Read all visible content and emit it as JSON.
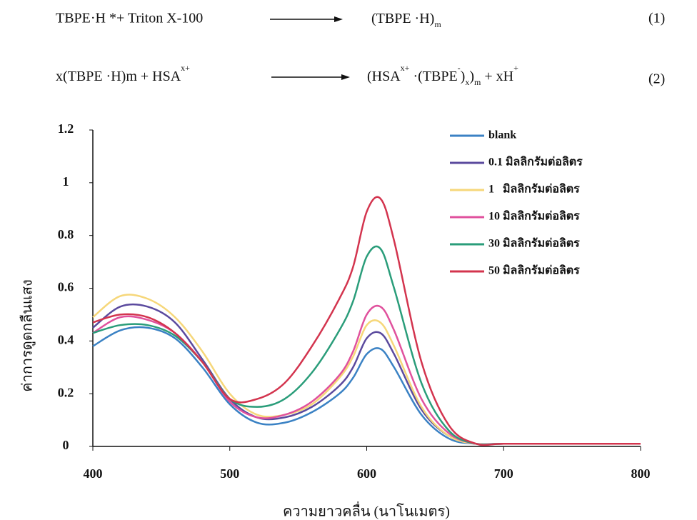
{
  "equations": [
    {
      "parts": [
        "TBPE·H *+ Triton X-100",
        "(TBPE ·H)",
        "m"
      ],
      "number": "(1)"
    },
    {
      "parts": [
        "x(TBPE ·H)m + HSA",
        "x+",
        "(HSA",
        "x+",
        " ·(TBPE",
        "-",
        ")",
        "x",
        ")",
        "m",
        " + xH",
        "+"
      ],
      "number": "(2)"
    }
  ],
  "chart_data": {
    "type": "line",
    "x_label": "ความยาวคลื่น (นาโนเมตร)",
    "y_label": "ค่าการดูดกลืนแสง",
    "x": [
      400,
      420,
      440,
      460,
      480,
      500,
      520,
      540,
      560,
      580,
      590,
      600,
      610,
      620,
      640,
      660,
      680,
      700,
      750,
      800
    ],
    "series": [
      {
        "name": "blank",
        "color": "#3b82c4",
        "values": [
          0.38,
          0.44,
          0.45,
          0.41,
          0.3,
          0.16,
          0.09,
          0.09,
          0.13,
          0.2,
          0.26,
          0.35,
          0.37,
          0.3,
          0.12,
          0.03,
          0.01,
          0.01,
          0.01,
          0.01
        ]
      },
      {
        "name": "0.1 มิลลิกรัมต่อลิตร",
        "color": "#5b4a9e",
        "values": [
          0.45,
          0.53,
          0.53,
          0.47,
          0.33,
          0.18,
          0.11,
          0.11,
          0.15,
          0.23,
          0.3,
          0.41,
          0.43,
          0.35,
          0.14,
          0.04,
          0.01,
          0.01,
          0.01,
          0.01
        ]
      },
      {
        "name": "1   มิลลิกรัมต่อลิตร",
        "color": "#f6d77a",
        "values": [
          0.49,
          0.57,
          0.56,
          0.49,
          0.36,
          0.2,
          0.12,
          0.12,
          0.16,
          0.26,
          0.34,
          0.46,
          0.47,
          0.38,
          0.15,
          0.04,
          0.01,
          0.01,
          0.01,
          0.01
        ]
      },
      {
        "name": "10 มิลลิกรัมต่อลิตร",
        "color": "#e0519d",
        "values": [
          0.43,
          0.49,
          0.48,
          0.43,
          0.32,
          0.17,
          0.11,
          0.12,
          0.17,
          0.27,
          0.36,
          0.5,
          0.53,
          0.44,
          0.18,
          0.05,
          0.01,
          0.01,
          0.01,
          0.01
        ]
      },
      {
        "name": "30 มิลลิกรัมต่อลิตร",
        "color": "#2a9d7a",
        "values": [
          0.43,
          0.46,
          0.46,
          0.42,
          0.32,
          0.18,
          0.15,
          0.18,
          0.28,
          0.44,
          0.55,
          0.72,
          0.75,
          0.6,
          0.24,
          0.06,
          0.01,
          0.01,
          0.01,
          0.01
        ]
      },
      {
        "name": "50 มิลลิกรัมต่อลิตร",
        "color": "#d3344e",
        "values": [
          0.47,
          0.5,
          0.49,
          0.43,
          0.32,
          0.18,
          0.18,
          0.24,
          0.38,
          0.56,
          0.68,
          0.89,
          0.94,
          0.78,
          0.32,
          0.08,
          0.01,
          0.01,
          0.01,
          0.01
        ]
      }
    ],
    "xlim": [
      400,
      800
    ],
    "xticks": [
      400,
      500,
      600,
      700,
      800
    ],
    "ylim": [
      0,
      1.2
    ],
    "yticks": [
      0,
      0.2,
      0.4,
      0.6,
      0.8,
      1,
      1.2
    ]
  }
}
